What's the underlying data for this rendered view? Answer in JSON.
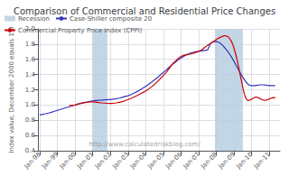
{
  "chart_data": {
    "type": "line",
    "title": "Comparison of Commercial and Residential Price Changes",
    "ylabel": "Index value, December 2000 equals 1.0",
    "annotations": [
      "http://www.calculatedriskblog.com/"
    ],
    "xlim": [
      1997.9,
      2011.6
    ],
    "ylim": [
      0.4,
      2.0
    ],
    "xticks": [
      {
        "value": 1998.0,
        "label": "Jan-98"
      },
      {
        "value": 1999.0,
        "label": "Jan-99"
      },
      {
        "value": 2000.0,
        "label": "Jan-00"
      },
      {
        "value": 2001.0,
        "label": "Jan-01"
      },
      {
        "value": 2002.0,
        "label": "Jan-02"
      },
      {
        "value": 2003.0,
        "label": "Jan-03"
      },
      {
        "value": 2004.0,
        "label": "Jan-04"
      },
      {
        "value": 2005.0,
        "label": "Jan-05"
      },
      {
        "value": 2006.0,
        "label": "Jan-06"
      },
      {
        "value": 2007.0,
        "label": "Jan-07"
      },
      {
        "value": 2008.0,
        "label": "Jan-08"
      },
      {
        "value": 2009.0,
        "label": "Jan-09"
      },
      {
        "value": 2010.0,
        "label": "Jan-10"
      },
      {
        "value": 2011.0,
        "label": "Jan-11"
      }
    ],
    "yticks": [
      0.4,
      0.6,
      0.8,
      {
        "value": 1.0,
        "label": "1.0"
      },
      1.2,
      1.4,
      1.6,
      1.8,
      {
        "value": 2.0,
        "label": "2.0"
      }
    ],
    "grid": true,
    "legend": "upper left",
    "recessions": {
      "name": "Recession",
      "color": "#b8cfe0",
      "ranges": [
        [
          2001.0,
          2001.83
        ],
        [
          2007.92,
          2009.5
        ]
      ]
    },
    "series": [
      {
        "name": "Case-Shiller composite 20",
        "color": "#3333bb",
        "x": [
          1998.0,
          1998.17,
          1998.33,
          1998.5,
          1998.67,
          1998.83,
          1999.0,
          1999.17,
          1999.33,
          1999.5,
          1999.67,
          1999.83,
          2000.0,
          2000.17,
          2000.33,
          2000.5,
          2000.67,
          2000.83,
          2001.0,
          2001.17,
          2001.33,
          2001.5,
          2001.67,
          2001.83,
          2002.0,
          2002.17,
          2002.33,
          2002.5,
          2002.67,
          2002.83,
          2003.0,
          2003.17,
          2003.33,
          2003.5,
          2003.67,
          2003.83,
          2004.0,
          2004.17,
          2004.33,
          2004.5,
          2004.67,
          2004.83,
          2005.0,
          2005.17,
          2005.33,
          2005.5,
          2005.67,
          2005.83,
          2006.0,
          2006.17,
          2006.33,
          2006.5,
          2006.67,
          2006.83,
          2007.0,
          2007.17,
          2007.33,
          2007.5,
          2007.67,
          2007.83,
          2008.0,
          2008.17,
          2008.33,
          2008.5,
          2008.67,
          2008.83,
          2009.0,
          2009.17,
          2009.33,
          2009.5,
          2009.67,
          2009.83,
          2010.0,
          2010.17,
          2010.33,
          2010.5,
          2010.67,
          2010.83,
          2011.0,
          2011.17,
          2011.33
        ],
        "values": [
          0.87,
          0.878,
          0.886,
          0.895,
          0.905,
          0.918,
          0.93,
          0.942,
          0.954,
          0.966,
          0.978,
          0.99,
          1.002,
          1.015,
          1.025,
          1.033,
          1.04,
          1.047,
          1.055,
          1.06,
          1.063,
          1.065,
          1.068,
          1.07,
          1.072,
          1.076,
          1.082,
          1.09,
          1.1,
          1.112,
          1.122,
          1.138,
          1.156,
          1.175,
          1.197,
          1.22,
          1.245,
          1.272,
          1.3,
          1.33,
          1.362,
          1.395,
          1.428,
          1.462,
          1.497,
          1.532,
          1.562,
          1.59,
          1.618,
          1.643,
          1.663,
          1.68,
          1.692,
          1.7,
          1.705,
          1.712,
          1.718,
          1.722,
          1.81,
          1.828,
          1.835,
          1.82,
          1.79,
          1.745,
          1.695,
          1.64,
          1.575,
          1.5,
          1.43,
          1.365,
          1.305,
          1.265,
          1.255,
          1.255,
          1.26,
          1.265,
          1.265,
          1.26,
          1.255,
          1.255,
          1.255
        ]
      },
      {
        "name": "Commercial Property Price Index (CPPI)",
        "color": "#cc0000",
        "x": [
          1999.67,
          1999.83,
          2000.0,
          2000.17,
          2000.33,
          2000.5,
          2000.67,
          2000.83,
          2001.0,
          2001.17,
          2001.33,
          2001.5,
          2001.67,
          2001.83,
          2002.0,
          2002.17,
          2002.33,
          2002.5,
          2002.67,
          2002.83,
          2003.0,
          2003.17,
          2003.33,
          2003.5,
          2003.67,
          2003.83,
          2004.0,
          2004.17,
          2004.33,
          2004.5,
          2004.67,
          2004.83,
          2005.0,
          2005.17,
          2005.33,
          2005.5,
          2005.67,
          2005.83,
          2006.0,
          2006.17,
          2006.33,
          2006.5,
          2006.67,
          2006.83,
          2007.0,
          2007.17,
          2007.33,
          2007.5,
          2007.67,
          2007.83,
          2008.0,
          2008.08,
          2008.17,
          2008.25,
          2008.33,
          2008.42,
          2008.5,
          2008.58,
          2008.67,
          2008.75,
          2008.83,
          2008.92,
          2009.0,
          2009.08,
          2009.17,
          2009.25,
          2009.33,
          2009.42,
          2009.5,
          2009.58,
          2009.67,
          2009.75,
          2009.83,
          2009.92,
          2010.0,
          2010.08,
          2010.17,
          2010.25,
          2010.33,
          2010.42,
          2010.5,
          2010.58,
          2010.67,
          2010.75,
          2010.83,
          2010.92,
          2011.0,
          2011.08,
          2011.17,
          2011.25,
          2011.33
        ],
        "values": [
          0.99,
          0.995,
          1.0,
          1.01,
          1.02,
          1.03,
          1.035,
          1.04,
          1.042,
          1.038,
          1.032,
          1.028,
          1.025,
          1.022,
          1.02,
          1.022,
          1.028,
          1.035,
          1.045,
          1.058,
          1.072,
          1.088,
          1.105,
          1.123,
          1.143,
          1.163,
          1.185,
          1.21,
          1.24,
          1.272,
          1.308,
          1.347,
          1.388,
          1.43,
          1.48,
          1.535,
          1.575,
          1.61,
          1.638,
          1.655,
          1.66,
          1.668,
          1.678,
          1.69,
          1.705,
          1.725,
          1.755,
          1.785,
          1.81,
          1.835,
          1.86,
          1.872,
          1.883,
          1.892,
          1.9,
          1.91,
          1.91,
          1.905,
          1.895,
          1.875,
          1.845,
          1.8,
          1.745,
          1.68,
          1.6,
          1.51,
          1.415,
          1.32,
          1.225,
          1.145,
          1.09,
          1.065,
          1.06,
          1.068,
          1.078,
          1.09,
          1.1,
          1.105,
          1.1,
          1.092,
          1.082,
          1.072,
          1.065,
          1.062,
          1.065,
          1.072,
          1.08,
          1.088,
          1.095,
          1.098,
          1.095
        ]
      }
    ]
  }
}
